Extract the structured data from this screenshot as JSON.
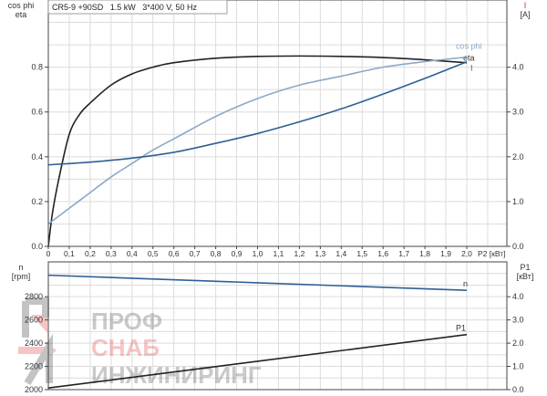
{
  "chart_data": [
    {
      "type": "line",
      "title": "CR5-9 +90SD   1.5 kW   3*400 V, 50 Hz",
      "xlabel": "P2 [кВт]",
      "ylabel_left": [
        "cos phi",
        "eta"
      ],
      "ylabel_right": [
        "I",
        "[A]"
      ],
      "xlim": [
        0,
        2.2
      ],
      "ylim_left": [
        0,
        1.1
      ],
      "ylim_right": [
        0,
        5.5
      ],
      "x_ticks": [
        "0",
        "0,1",
        "0,2",
        "0,3",
        "0,4",
        "0,5",
        "0,6",
        "0,7",
        "0,8",
        "0,9",
        "1,0",
        "1,1",
        "1,2",
        "1,3",
        "1,4",
        "1,5",
        "1,6",
        "1,7",
        "1,8",
        "1,9",
        "2,0"
      ],
      "y_ticks_left": [
        "0.0",
        "0.2",
        "0.4",
        "0.6",
        "0.8"
      ],
      "y_ticks_right": [
        "0.0",
        "1.0",
        "2.0",
        "3.0",
        "4.0"
      ],
      "grid": true,
      "series": [
        {
          "name": "eta",
          "axis": "left",
          "color": "#222222",
          "x": [
            0,
            0.02,
            0.05,
            0.1,
            0.15,
            0.2,
            0.3,
            0.4,
            0.5,
            0.6,
            0.8,
            1.0,
            1.2,
            1.4,
            1.6,
            1.8,
            2.0
          ],
          "y": [
            0,
            0.15,
            0.3,
            0.5,
            0.59,
            0.64,
            0.72,
            0.77,
            0.8,
            0.82,
            0.84,
            0.848,
            0.85,
            0.848,
            0.843,
            0.833,
            0.82
          ]
        },
        {
          "name": "cos phi",
          "axis": "left",
          "color": "#8aa9c8",
          "x": [
            0,
            0.1,
            0.2,
            0.3,
            0.4,
            0.5,
            0.6,
            0.8,
            1.0,
            1.2,
            1.4,
            1.6,
            1.8,
            2.0
          ],
          "y": [
            0.1,
            0.17,
            0.24,
            0.31,
            0.37,
            0.43,
            0.48,
            0.58,
            0.66,
            0.72,
            0.76,
            0.8,
            0.825,
            0.845
          ]
        },
        {
          "name": "I",
          "axis": "right",
          "color": "#2e5f95",
          "x": [
            0,
            0.2,
            0.4,
            0.6,
            0.8,
            1.0,
            1.2,
            1.4,
            1.6,
            1.8,
            2.0
          ],
          "y": [
            1.82,
            1.88,
            1.97,
            2.1,
            2.3,
            2.52,
            2.78,
            3.07,
            3.4,
            3.75,
            4.12
          ]
        }
      ]
    },
    {
      "type": "line",
      "ylabel_left": [
        "n",
        "[rpm]"
      ],
      "ylabel_right": [
        "P1",
        "[кВт]"
      ],
      "xlim": [
        0,
        2.2
      ],
      "ylim_left": [
        2000,
        3100
      ],
      "ylim_right": [
        0,
        5.5
      ],
      "y_ticks_left": [
        "2000",
        "2200",
        "2400",
        "2600",
        "2800"
      ],
      "y_ticks_right": [
        "0.0",
        "1.0",
        "2.0",
        "3.0",
        "4.0"
      ],
      "grid": true,
      "series": [
        {
          "name": "n",
          "axis": "left",
          "color": "#2e5f95",
          "x": [
            0,
            2.0
          ],
          "y": [
            2985,
            2855
          ]
        },
        {
          "name": "P1",
          "axis": "right",
          "color": "#222222",
          "x": [
            0,
            2.0
          ],
          "y": [
            0.07,
            2.37
          ]
        }
      ]
    }
  ],
  "watermark": {
    "lines": [
      "ПРОФ",
      "СНАБ",
      "ИНЖИНИРИНГ"
    ]
  }
}
